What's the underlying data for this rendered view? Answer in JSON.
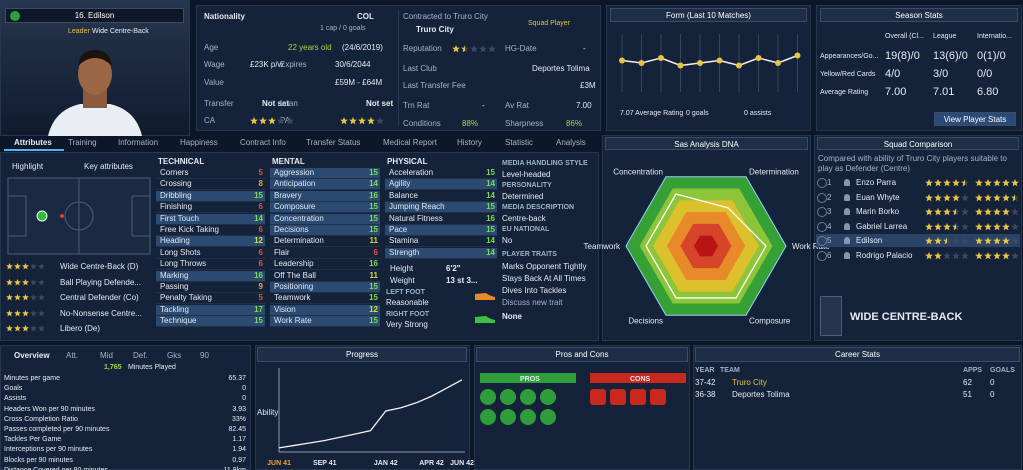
{
  "player": {
    "name": "16. Edilson",
    "role_tag": "Leader",
    "position": "Wide Centre-Back"
  },
  "info": {
    "nationality_label": "Nationality",
    "nation": "COL",
    "caps": "1 cap / 0 goals",
    "contract_label": "Contracted to Truro City",
    "club": "Truro City",
    "squad_status": "Squad Player",
    "age_label": "Age",
    "age": "22 years old",
    "age_date": "(24/6/2019)",
    "wage_label": "Wage",
    "wage": "£23K p/w",
    "expires_label": "Expires",
    "expires": "30/6/2044",
    "value_label": "Value",
    "value": "£59M - £64M",
    "transfer_label": "Transfer",
    "transfer": "Not set",
    "loan_label": "Loan",
    "loan": "Not set",
    "ca_label": "CA",
    "ca": 3,
    "pa_label": "PA",
    "pa": 4,
    "reputation_label": "Reputation",
    "reputation": 1.5,
    "hg_label": "HG-Date",
    "hg": "-",
    "last_club_label": "Last Club",
    "last_club": "Deportes Tolima",
    "fee_label": "Last Transfer Fee",
    "fee": "£3M",
    "trn_label": "Trn Rat",
    "trn": "-",
    "av_label": "Av Rat",
    "av": "7.00",
    "conditions_label": "Conditions",
    "conditions": "88%",
    "sharpness_label": "Sharpness",
    "sharpness": "86%"
  },
  "form": {
    "title": "Form (Last 10 Matches)",
    "values": [
      7.1,
      7.0,
      7.2,
      6.9,
      7.0,
      7.1,
      6.9,
      7.2,
      7.0,
      7.3
    ],
    "ylim": [
      6,
      8
    ],
    "avg_rating": "7.07 Average Rating",
    "goals": "0 goals",
    "assists": "0 assists"
  },
  "season": {
    "title": "Season Stats",
    "columns": [
      "Overall (Cl...",
      "League",
      "Internatio..."
    ],
    "rows": [
      {
        "label": "Appearances/Go...",
        "values": [
          "19(8)/0",
          "13(6)/0",
          "0(1)/0"
        ]
      },
      {
        "label": "Yellow/Red Cards",
        "values": [
          "4/0",
          "3/0",
          "0/0"
        ]
      },
      {
        "label": "Average Rating",
        "values": [
          "7.00",
          "7.01",
          "6.80"
        ]
      }
    ],
    "button": "View Player Stats"
  },
  "tabs": [
    "Attributes",
    "Training",
    "Information",
    "Happiness",
    "Contract Info",
    "Transfer Status",
    "Medical Report",
    "History",
    "Statistic",
    "Analysis"
  ],
  "attributes": {
    "highlight": "Highlight",
    "key": "Key attributes",
    "roles": [
      {
        "name": "Wide Centre-Back (D)",
        "stars": 3
      },
      {
        "name": "Ball Playing Defende...",
        "stars": 3
      },
      {
        "name": "Central Defender (Co)",
        "stars": 3
      },
      {
        "name": "No-Nonsense Centre...",
        "stars": 3
      },
      {
        "name": "Libero (De)",
        "stars": 3
      }
    ],
    "technical": {
      "title": "TECHNICAL",
      "items": [
        {
          "name": "Corners",
          "value": 5,
          "key": false
        },
        {
          "name": "Crossing",
          "value": 8,
          "key": false
        },
        {
          "name": "Dribbling",
          "value": 15,
          "key": true
        },
        {
          "name": "Finishing",
          "value": 6,
          "key": false
        },
        {
          "name": "First Touch",
          "value": 14,
          "key": true
        },
        {
          "name": "Free Kick Taking",
          "value": 6,
          "key": false
        },
        {
          "name": "Heading",
          "value": 12,
          "key": true
        },
        {
          "name": "Long Shots",
          "value": 6,
          "key": false
        },
        {
          "name": "Long Throws",
          "value": 6,
          "key": false
        },
        {
          "name": "Marking",
          "value": 16,
          "key": true
        },
        {
          "name": "Passing",
          "value": 9,
          "key": false
        },
        {
          "name": "Penalty Taking",
          "value": 5,
          "key": false
        },
        {
          "name": "Tackling",
          "value": 17,
          "key": true
        },
        {
          "name": "Technique",
          "value": 15,
          "key": true
        }
      ]
    },
    "mental": {
      "title": "MENTAL",
      "items": [
        {
          "name": "Aggression",
          "value": 15,
          "key": true
        },
        {
          "name": "Anticipation",
          "value": 14,
          "key": true
        },
        {
          "name": "Bravery",
          "value": 16,
          "key": true
        },
        {
          "name": "Composure",
          "value": 15,
          "key": true
        },
        {
          "name": "Concentration",
          "value": 15,
          "key": true
        },
        {
          "name": "Decisions",
          "value": 15,
          "key": true
        },
        {
          "name": "Determination",
          "value": 11,
          "key": false
        },
        {
          "name": "Flair",
          "value": 6,
          "key": false
        },
        {
          "name": "Leadership",
          "value": 16,
          "key": false
        },
        {
          "name": "Off The Ball",
          "value": 11,
          "key": false
        },
        {
          "name": "Positioning",
          "value": 15,
          "key": true
        },
        {
          "name": "Teamwork",
          "value": 15,
          "key": false
        },
        {
          "name": "Vision",
          "value": 12,
          "key": true
        },
        {
          "name": "Work Rate",
          "value": 15,
          "key": true
        }
      ]
    },
    "physical": {
      "title": "PHYSICAL",
      "items": [
        {
          "name": "Acceleration",
          "value": 15,
          "key": false
        },
        {
          "name": "Agility",
          "value": 14,
          "key": true
        },
        {
          "name": "Balance",
          "value": 14,
          "key": false
        },
        {
          "name": "Jumping Reach",
          "value": 15,
          "key": true
        },
        {
          "name": "Natural Fitness",
          "value": 16,
          "key": false
        },
        {
          "name": "Pace",
          "value": 15,
          "key": true
        },
        {
          "name": "Stamina",
          "value": 14,
          "key": false
        },
        {
          "name": "Strength",
          "value": 14,
          "key": true
        }
      ]
    },
    "height_label": "Height",
    "height": "6'2\"",
    "weight_label": "Weight",
    "weight": "13 st 3...",
    "left_foot_label": "LEFT FOOT",
    "left_foot": "Reasonable",
    "right_foot_label": "RIGHT FOOT",
    "right_foot": "Very Strong"
  },
  "media": {
    "sections": [
      {
        "heading": "MEDIA HANDLING STYLE",
        "text": "Level-headed"
      },
      {
        "heading": "PERSONALITY",
        "text": "Determined"
      },
      {
        "heading": "MEDIA DESCRIPTION",
        "text": "Centre-back"
      },
      {
        "heading": "EU NATIONAL",
        "text": "No"
      }
    ],
    "traits_heading": "PLAYER TRAITS",
    "traits": [
      "Marks Opponent Tightly",
      "Stays Back At All Times",
      "Dives Into Tackles"
    ],
    "discuss": "Discuss new trait",
    "none": "None"
  },
  "dna": {
    "title": "Sas Analysis DNA",
    "axes": [
      "Concentration",
      "Determination",
      "Work Rate",
      "Composure",
      "Decisions",
      "Teamwork"
    ],
    "values": [
      15,
      11,
      15,
      15,
      15,
      15
    ],
    "rlim": [
      0,
      20
    ]
  },
  "squad": {
    "title": "Squad Comparison",
    "note": "Compared with ability of Truro City players suitable to play as Defender (Centre)",
    "players": [
      {
        "rank": 1,
        "name": "Enzo Parra",
        "current": 4.5,
        "potential": 5
      },
      {
        "rank": 2,
        "name": "Euan Whyte",
        "current": 4,
        "potential": 4.5
      },
      {
        "rank": 3,
        "name": "Marin Borko",
        "current": 3.5,
        "potential": 4
      },
      {
        "rank": 4,
        "name": "Gabriel Larrea",
        "current": 3.5,
        "potential": 4
      },
      {
        "rank": 5,
        "name": "Edilson",
        "current": 2.5,
        "potential": 4
      },
      {
        "rank": 6,
        "name": "Rodrigo Palacio",
        "current": 2,
        "potential": 4
      }
    ],
    "role": "WIDE CENTRE-BACK"
  },
  "overview": {
    "tabs": [
      "Overview",
      "Att.",
      "Mid",
      "Def.",
      "Gks",
      "90"
    ],
    "minutes": "1,765",
    "minutes_label": "Minutes Played",
    "stats": [
      {
        "label": "Minutes per game",
        "value": "65.37"
      },
      {
        "label": "Goals",
        "value": "0"
      },
      {
        "label": "Assists",
        "value": "0"
      },
      {
        "label": "Headers Won per 90 minutes",
        "value": "3.93"
      },
      {
        "label": "Cross Completion Ratio",
        "value": "33%"
      },
      {
        "label": "Passes completed per 90 minutes",
        "value": "82.45"
      },
      {
        "label": "Tackles Per Game",
        "value": "1.17"
      },
      {
        "label": "Interceptions per 90 minutes",
        "value": "1.94"
      },
      {
        "label": "Blocks per 90 minutes",
        "value": "0.97"
      },
      {
        "label": "Distance Covered per 90 minutes",
        "value": "11.8km"
      }
    ]
  },
  "progress": {
    "title": "Progress",
    "y_label": "Ability",
    "categories": [
      "JUN 41",
      null,
      null,
      "SEP 41",
      null,
      null,
      null,
      "JAN 42",
      null,
      null,
      "APR 42",
      null,
      "JUN 42"
    ],
    "values": [
      5,
      8,
      11,
      14,
      18,
      22,
      26,
      50,
      54,
      60,
      68,
      78,
      88
    ],
    "ylim": [
      0,
      100
    ]
  },
  "pros_cons": {
    "title": "Pros and Cons",
    "pros": "PROS",
    "cons": "CONS"
  },
  "career": {
    "title": "Career Stats",
    "columns": [
      "YEAR",
      "TEAM",
      "APPS",
      "GOALS"
    ],
    "rows": [
      [
        "37-42",
        "Truro City",
        62,
        0
      ],
      [
        "36-38",
        "Deportes Tolima",
        51,
        0
      ]
    ]
  }
}
